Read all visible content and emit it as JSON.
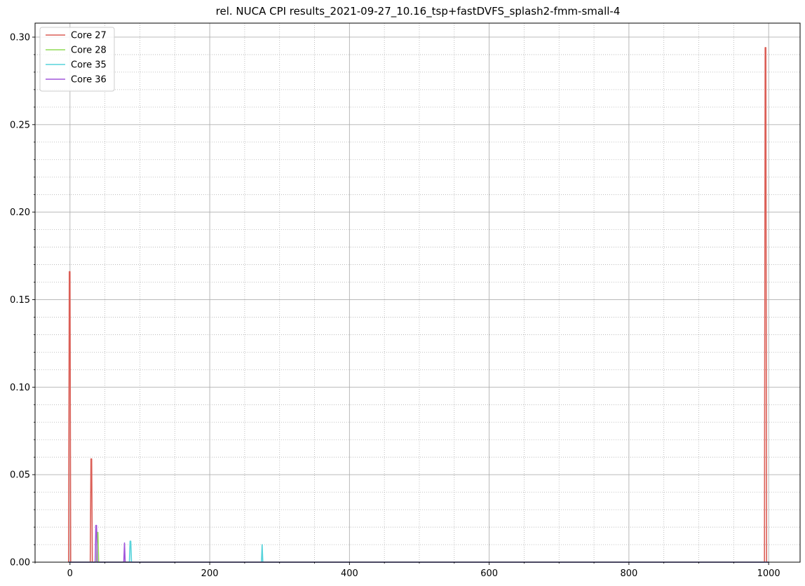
{
  "chart_data": {
    "type": "line",
    "title": "rel. NUCA CPI results_2021-09-27_10.16_tsp+fastDVFS_splash2-fmm-small-4",
    "xlabel": "",
    "ylabel": "",
    "xlim": [
      -50,
      1045
    ],
    "ylim": [
      0,
      0.308
    ],
    "xticks": [
      0,
      200,
      400,
      600,
      800,
      1000
    ],
    "yticks": [
      0.0,
      0.05,
      0.1,
      0.15,
      0.2,
      0.25,
      0.3
    ],
    "xtick_labels": [
      "0",
      "200",
      "400",
      "600",
      "800",
      "1000"
    ],
    "ytick_labels": [
      "0.00",
      "0.05",
      "0.10",
      "0.15",
      "0.20",
      "0.25",
      "0.30"
    ],
    "grid": {
      "major": true,
      "minor": true
    },
    "legend_position": "top-left",
    "series": [
      {
        "name": "Core 27",
        "color": "#db5f57",
        "points": [
          [
            -2,
            0
          ],
          [
            -1,
            0.166
          ],
          [
            0,
            0.166
          ],
          [
            1,
            0
          ],
          [
            29,
            0
          ],
          [
            30,
            0.059
          ],
          [
            31,
            0.059
          ],
          [
            32,
            0
          ],
          [
            994,
            0
          ],
          [
            995,
            0.294
          ],
          [
            996,
            0.294
          ],
          [
            997,
            0
          ],
          [
            1000,
            0
          ]
        ]
      },
      {
        "name": "Core 28",
        "color": "#91db57",
        "points": [
          [
            -2,
            0
          ],
          [
            38,
            0
          ],
          [
            39,
            0.017
          ],
          [
            40,
            0.017
          ],
          [
            41,
            0
          ],
          [
            1000,
            0
          ]
        ]
      },
      {
        "name": "Core 35",
        "color": "#57d3db",
        "points": [
          [
            -2,
            0
          ],
          [
            85,
            0
          ],
          [
            86,
            0.012
          ],
          [
            87,
            0.012
          ],
          [
            88,
            0
          ],
          [
            274,
            0
          ],
          [
            275,
            0.01
          ],
          [
            276,
            0
          ],
          [
            1000,
            0
          ]
        ]
      },
      {
        "name": "Core 36",
        "color": "#a157db",
        "points": [
          [
            -2,
            0
          ],
          [
            36,
            0
          ],
          [
            37,
            0.021
          ],
          [
            38,
            0.021
          ],
          [
            39,
            0
          ],
          [
            77,
            0
          ],
          [
            78,
            0.011
          ],
          [
            79,
            0
          ],
          [
            1000,
            0
          ]
        ]
      }
    ]
  }
}
